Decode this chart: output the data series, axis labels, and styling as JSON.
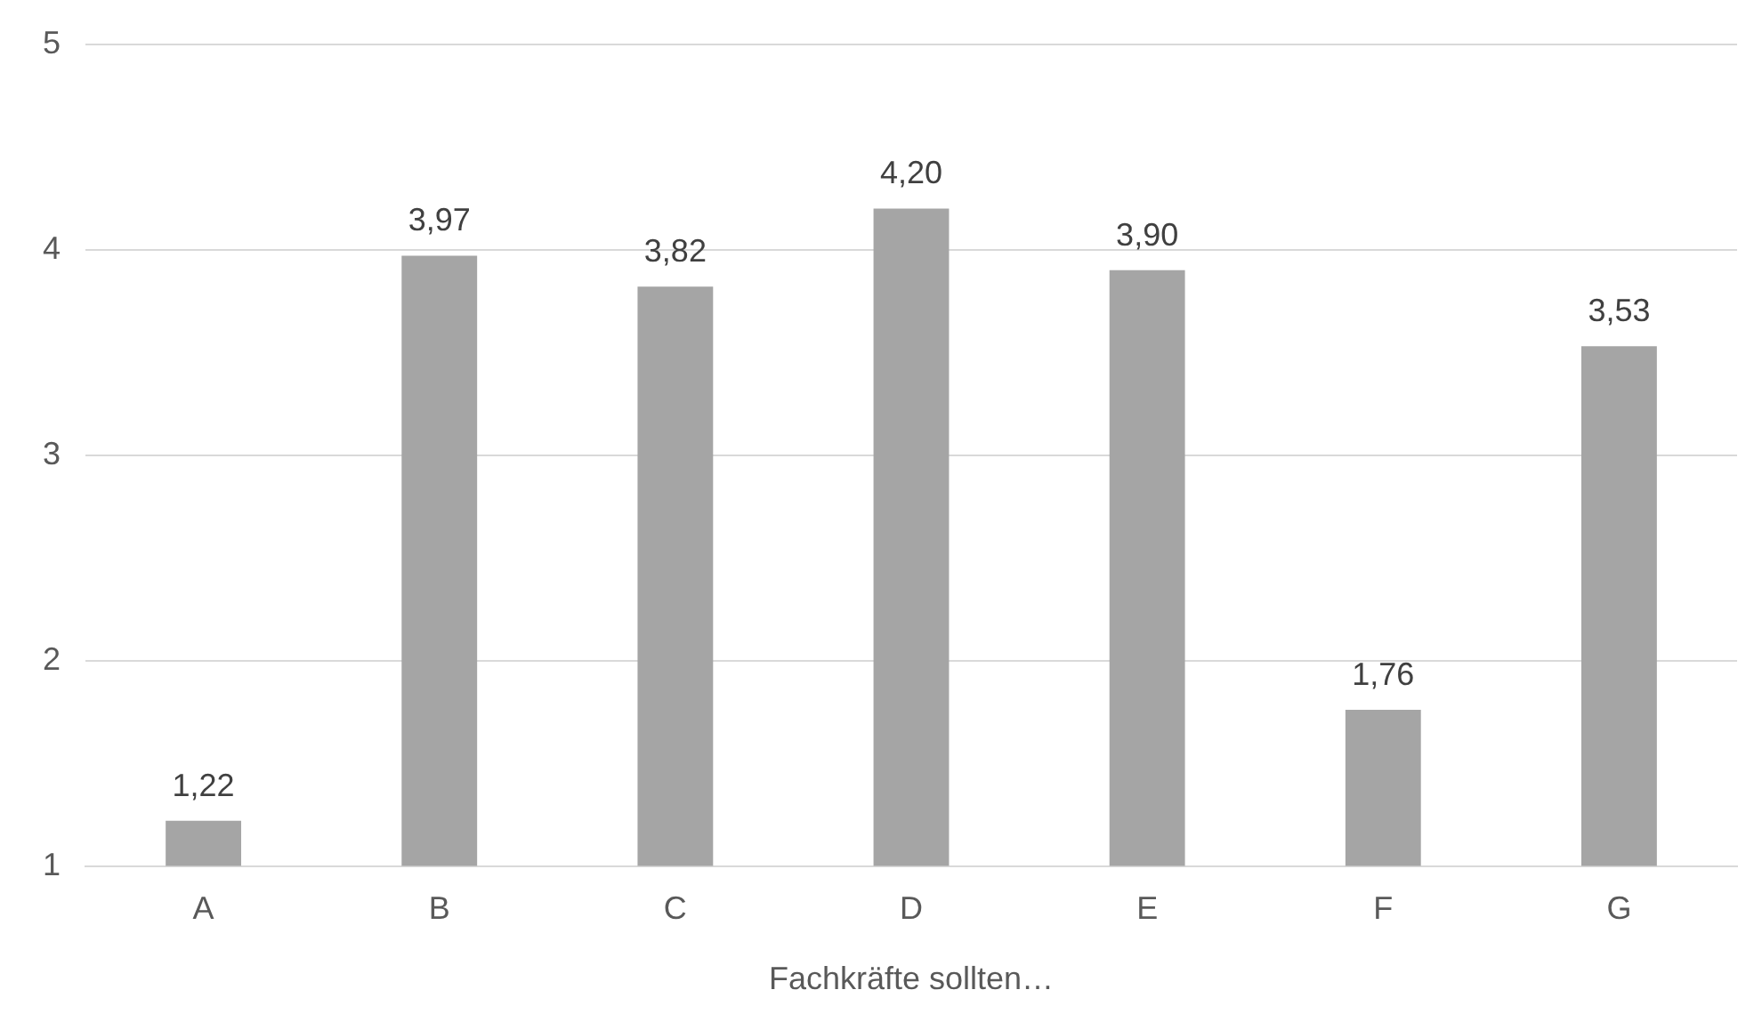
{
  "chart_data": {
    "type": "bar",
    "xlabel": "Fachkräfte sollten…",
    "categories": [
      "A",
      "B",
      "C",
      "D",
      "E",
      "F",
      "G"
    ],
    "values": [
      1.22,
      3.97,
      3.82,
      4.2,
      3.9,
      1.76,
      3.53
    ],
    "value_labels": [
      "1,22",
      "3,97",
      "3,82",
      "4,20",
      "3,90",
      "1,76",
      "3,53"
    ],
    "color": "#a5a5a5",
    "ylim": [
      1,
      5
    ],
    "yticks": [
      1,
      2,
      3,
      4,
      5
    ],
    "grid": "y",
    "legend": false
  }
}
